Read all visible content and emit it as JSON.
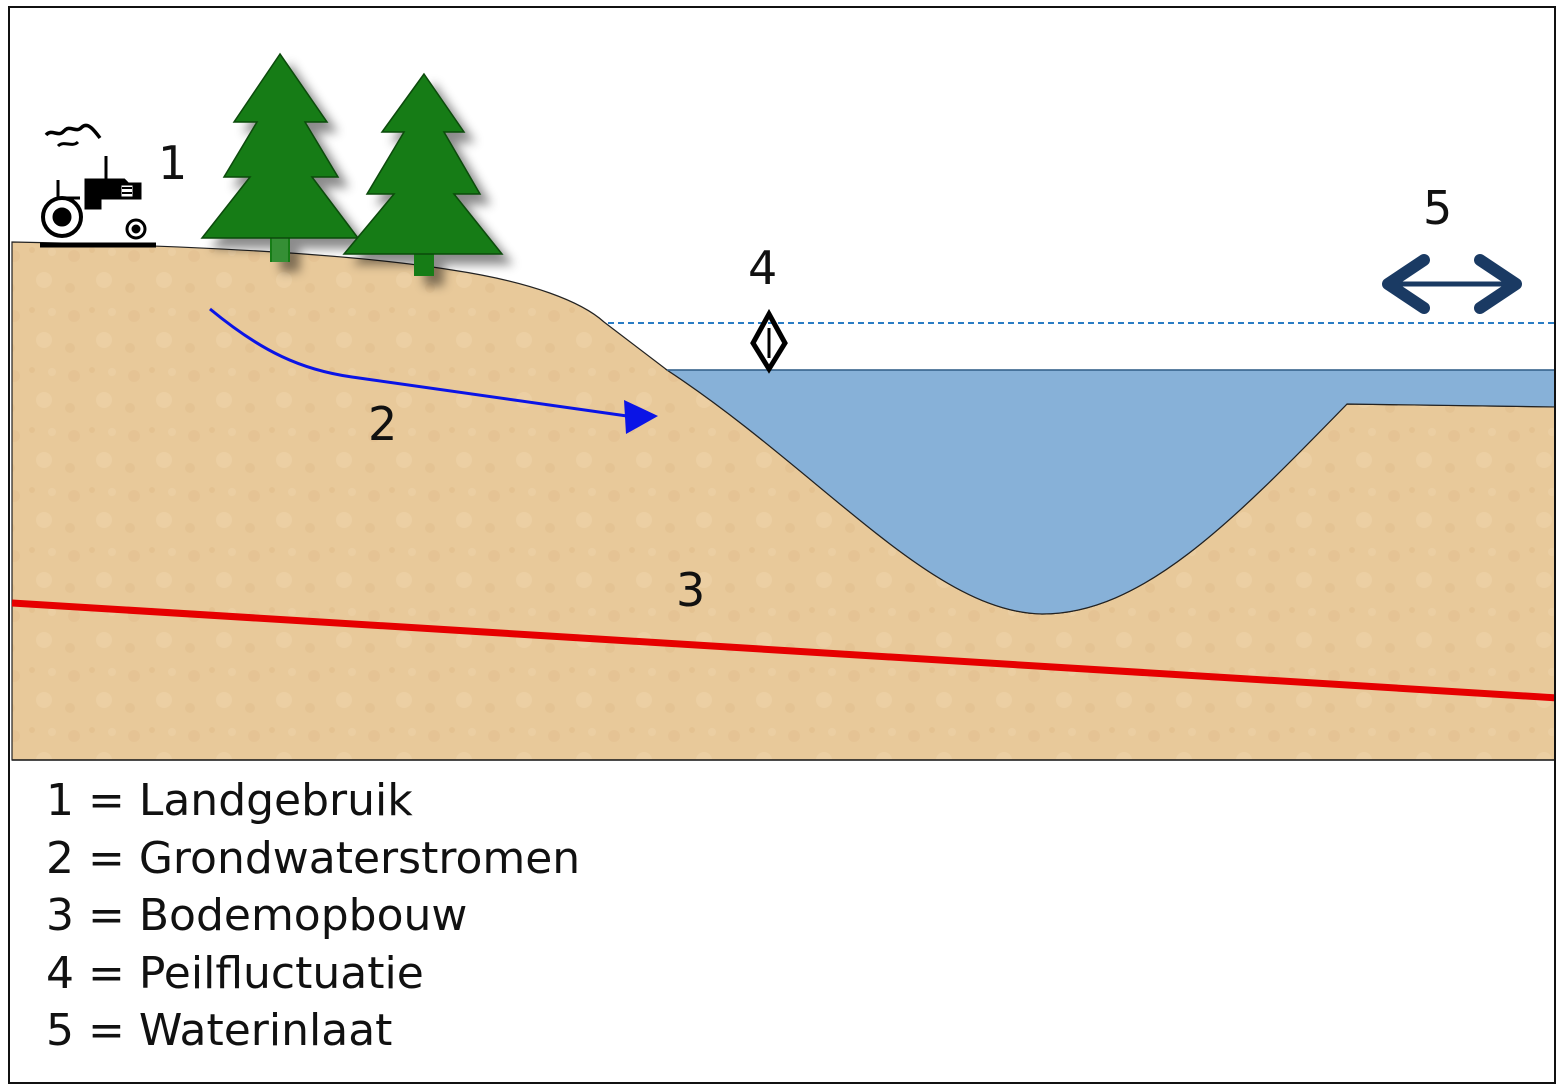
{
  "colors": {
    "soil": "#e8c99a",
    "water": "#87b1d8",
    "groundwater_arrow": "#0a14e6",
    "red_line": "#e60000",
    "tree": "#137c13",
    "inlet_arrow": "#1a3a63",
    "water_level_dashed": "#2a7cc4"
  },
  "icons": {
    "tractor": "tractor-icon",
    "trees": "pine-tree-icon",
    "level_fluctuation": "double-arrow-vertical-icon",
    "water_inlet": "double-arrow-horizontal-icon"
  },
  "diagram_labels": {
    "label_1": "1",
    "label_2": "2",
    "label_3": "3",
    "label_4": "4",
    "label_5": "5"
  },
  "legend": {
    "items": [
      "1 = Landgebruik",
      "2 = Grondwaterstromen",
      "3 = Bodemopbouw",
      "4 = Peilfluctuatie",
      "5 = Waterinlaat"
    ]
  }
}
